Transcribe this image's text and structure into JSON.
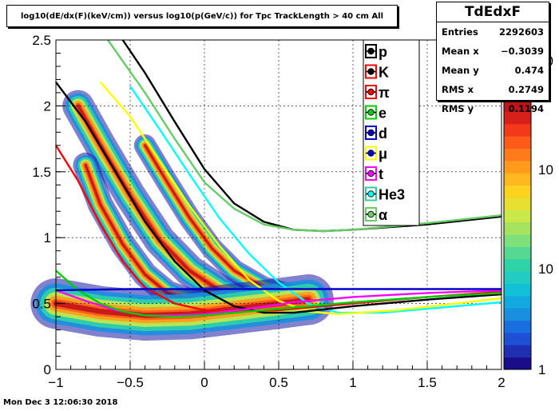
{
  "title": "log10(dE/dx(F)(keV/cm)) versus log10(p(GeV/c)) for Tpc TrackLength > 40 cm All",
  "stats": {
    "name": "TdEdxF",
    "rows": [
      {
        "label": "Entries",
        "value": "2292603"
      },
      {
        "label": "Mean x",
        "value": "−0.3039"
      },
      {
        "label": "Mean y",
        "value": "0.474"
      },
      {
        "label": "RMS x",
        "value": "0.2749"
      },
      {
        "label": "RMS y",
        "value": "0.1194"
      }
    ]
  },
  "timestamp": "Mon Dec  3 12:06:30 2018",
  "colors": {
    "p": "#000000",
    "K": "#ff0000",
    "pi": "#00cc00",
    "e": "#0000cc",
    "d": "#0000cc",
    "mu": "#ffff00",
    "t": "#ff00ff",
    "He3": "#00ffff",
    "alpha": "#66cc66"
  },
  "chart_data": {
    "type": "heatmap",
    "xlim": [
      -1,
      2
    ],
    "ylim": [
      0,
      2.5
    ],
    "x_ticks": [
      "−1",
      "−0.5",
      "0",
      "0.5",
      "1",
      "1.5",
      "2"
    ],
    "y_ticks": [
      "0",
      "0.5",
      "1",
      "1.5",
      "2",
      "2.5"
    ],
    "colorbar_ticks": [
      "1",
      "10",
      "10",
      "10"
    ],
    "grid": true,
    "legend": [
      {
        "label": "p",
        "marker": "#000000",
        "box": "#000000"
      },
      {
        "label": "K",
        "marker": "#000000",
        "box": "#ff0000"
      },
      {
        "label": "π",
        "marker": "#ff0000",
        "box": "#ff0000"
      },
      {
        "label": "e",
        "marker": "#00cc00",
        "box": "#00cc00"
      },
      {
        "label": "d",
        "marker": "#0000cc",
        "box": "#0000cc"
      },
      {
        "label": "μ",
        "marker": "#0000cc",
        "box": "#ffff00"
      },
      {
        "label": "t",
        "marker": "#ff00ff",
        "box": "#ff00ff"
      },
      {
        "label": "He3",
        "marker": "#00ffff",
        "box": "#33cc99"
      },
      {
        "label": "α",
        "marker": "#66cc66",
        "box": "#66cc66"
      }
    ],
    "curves": [
      {
        "color": "#000000",
        "points": [
          [
            -0.55,
            2.5
          ],
          [
            -0.4,
            2.25
          ],
          [
            -0.2,
            1.88
          ],
          [
            0,
            1.52
          ],
          [
            0.2,
            1.26
          ],
          [
            0.4,
            1.12
          ],
          [
            0.6,
            1.06
          ],
          [
            0.8,
            1.05
          ],
          [
            1.0,
            1.06
          ],
          [
            1.5,
            1.1
          ],
          [
            2.0,
            1.16
          ]
        ]
      },
      {
        "color": "#66cc66",
        "points": [
          [
            -0.65,
            2.5
          ],
          [
            -0.4,
            2.1
          ],
          [
            -0.2,
            1.75
          ],
          [
            0,
            1.42
          ],
          [
            0.2,
            1.22
          ],
          [
            0.4,
            1.1
          ],
          [
            0.6,
            1.06
          ],
          [
            0.8,
            1.05
          ],
          [
            1.0,
            1.06
          ],
          [
            1.5,
            1.11
          ],
          [
            2.0,
            1.17
          ]
        ]
      },
      {
        "color": "#00ffff",
        "points": [
          [
            -0.5,
            2.15
          ],
          [
            -0.3,
            1.82
          ],
          [
            -0.1,
            1.48
          ],
          [
            0.1,
            1.15
          ],
          [
            0.3,
            0.88
          ],
          [
            0.5,
            0.66
          ],
          [
            0.7,
            0.5
          ],
          [
            0.9,
            0.43
          ],
          [
            1.2,
            0.43
          ],
          [
            1.6,
            0.47
          ],
          [
            2.0,
            0.51
          ]
        ]
      },
      {
        "color": "#ffff00",
        "points": [
          [
            -0.7,
            2.18
          ],
          [
            -0.5,
            1.92
          ],
          [
            -0.3,
            1.58
          ],
          [
            -0.1,
            1.24
          ],
          [
            0.1,
            0.94
          ],
          [
            0.3,
            0.68
          ],
          [
            0.5,
            0.52
          ],
          [
            0.7,
            0.44
          ],
          [
            0.9,
            0.42
          ],
          [
            1.3,
            0.45
          ],
          [
            2.0,
            0.54
          ]
        ]
      },
      {
        "color": "#000000",
        "points": [
          [
            -1.0,
            2.18
          ],
          [
            -0.8,
            1.88
          ],
          [
            -0.6,
            1.5
          ],
          [
            -0.4,
            1.12
          ],
          [
            -0.2,
            0.82
          ],
          [
            0,
            0.6
          ],
          [
            0.2,
            0.48
          ],
          [
            0.4,
            0.43
          ],
          [
            0.6,
            0.43
          ],
          [
            1.0,
            0.48
          ],
          [
            1.5,
            0.53
          ],
          [
            2.0,
            0.57
          ]
        ]
      },
      {
        "color": "#ff0000",
        "points": [
          [
            -1.0,
            1.7
          ],
          [
            -0.85,
            1.43
          ],
          [
            -0.7,
            1.1
          ],
          [
            -0.55,
            0.82
          ],
          [
            -0.4,
            0.62
          ],
          [
            -0.2,
            0.5
          ],
          [
            0,
            0.45
          ],
          [
            0.2,
            0.44
          ],
          [
            0.5,
            0.45
          ],
          [
            1.0,
            0.5
          ],
          [
            1.5,
            0.55
          ],
          [
            2.0,
            0.59
          ]
        ]
      },
      {
        "color": "#ff00ff",
        "points": [
          [
            -1.0,
            0.6
          ],
          [
            -0.8,
            0.52
          ],
          [
            -0.6,
            0.45
          ],
          [
            -0.4,
            0.41
          ],
          [
            -0.2,
            0.41
          ],
          [
            0,
            0.42
          ],
          [
            0.3,
            0.46
          ],
          [
            0.6,
            0.51
          ],
          [
            1.0,
            0.55
          ],
          [
            1.5,
            0.58
          ],
          [
            2.0,
            0.6
          ]
        ]
      },
      {
        "color": "#00cc00",
        "points": [
          [
            -1.0,
            0.75
          ],
          [
            -0.85,
            0.6
          ],
          [
            -0.7,
            0.5
          ],
          [
            -0.55,
            0.44
          ],
          [
            -0.4,
            0.41
          ],
          [
            -0.2,
            0.4
          ],
          [
            0,
            0.41
          ],
          [
            0.3,
            0.44
          ],
          [
            0.6,
            0.47
          ],
          [
            1.0,
            0.51
          ],
          [
            1.5,
            0.55
          ],
          [
            2.0,
            0.58
          ]
        ]
      },
      {
        "color": "#0000cc",
        "points": [
          [
            -1.0,
            0.6
          ],
          [
            -0.5,
            0.61
          ],
          [
            0,
            0.61
          ],
          [
            0.5,
            0.61
          ],
          [
            1.0,
            0.61
          ],
          [
            1.5,
            0.61
          ],
          [
            2.0,
            0.61
          ]
        ]
      }
    ],
    "bands": [
      {
        "points": [
          [
            -0.85,
            2.0
          ],
          [
            -0.7,
            1.7
          ],
          [
            -0.5,
            1.32
          ],
          [
            -0.3,
            0.98
          ],
          [
            -0.1,
            0.75
          ],
          [
            0.1,
            0.6
          ],
          [
            0.3,
            0.52
          ],
          [
            0.5,
            0.48
          ]
        ],
        "width": 0.1
      },
      {
        "points": [
          [
            -0.8,
            1.55
          ],
          [
            -0.7,
            1.25
          ],
          [
            -0.55,
            0.95
          ],
          [
            -0.4,
            0.72
          ],
          [
            -0.25,
            0.58
          ],
          [
            -0.1,
            0.52
          ],
          [
            0.1,
            0.5
          ]
        ],
        "width": 0.08
      },
      {
        "points": [
          [
            -0.4,
            1.7
          ],
          [
            -0.25,
            1.42
          ],
          [
            -0.1,
            1.15
          ],
          [
            0.05,
            0.92
          ],
          [
            0.2,
            0.75
          ],
          [
            0.4,
            0.62
          ],
          [
            0.6,
            0.56
          ]
        ],
        "width": 0.07
      },
      {
        "points": [
          [
            -1.0,
            0.5
          ],
          [
            -0.7,
            0.44
          ],
          [
            -0.4,
            0.41
          ],
          [
            -0.1,
            0.42
          ],
          [
            0.2,
            0.46
          ],
          [
            0.5,
            0.5
          ],
          [
            0.7,
            0.53
          ]
        ],
        "width": 0.16
      }
    ]
  }
}
